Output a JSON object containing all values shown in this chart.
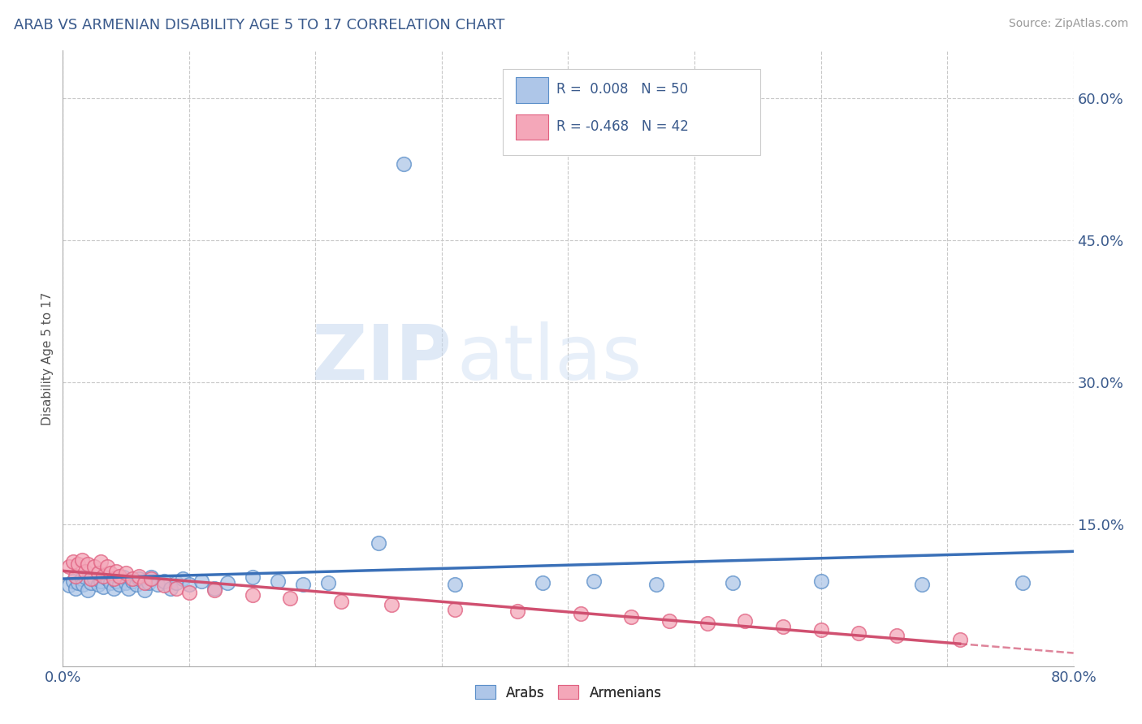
{
  "title": "ARAB VS ARMENIAN DISABILITY AGE 5 TO 17 CORRELATION CHART",
  "source": "Source: ZipAtlas.com",
  "ylabel": "Disability Age 5 to 17",
  "xlim": [
    0.0,
    0.8
  ],
  "ylim": [
    0.0,
    0.65
  ],
  "ytick_labels": [
    "15.0%",
    "30.0%",
    "45.0%",
    "60.0%"
  ],
  "ytick_values": [
    0.15,
    0.3,
    0.45,
    0.6
  ],
  "background_color": "#ffffff",
  "grid_color": "#c8c8c8",
  "title_color": "#3a5a8c",
  "source_color": "#999999",
  "arab_color": "#aec6e8",
  "armenian_color": "#f4a7b9",
  "arab_edge_color": "#5b8fc9",
  "armenian_edge_color": "#e06080",
  "arab_line_color": "#3a70b8",
  "armenian_line_color": "#d05070",
  "arab_R": 0.008,
  "arab_N": 50,
  "armenian_R": -0.468,
  "armenian_N": 42,
  "watermark_zip": "ZIP",
  "watermark_atlas": "atlas",
  "arab_x": [
    0.005,
    0.008,
    0.01,
    0.012,
    0.015,
    0.016,
    0.018,
    0.02,
    0.022,
    0.025,
    0.028,
    0.03,
    0.032,
    0.035,
    0.038,
    0.04,
    0.042,
    0.045,
    0.048,
    0.05,
    0.052,
    0.055,
    0.058,
    0.06,
    0.065,
    0.068,
    0.07,
    0.075,
    0.08,
    0.085,
    0.09,
    0.095,
    0.1,
    0.11,
    0.12,
    0.13,
    0.15,
    0.17,
    0.19,
    0.21,
    0.25,
    0.27,
    0.31,
    0.38,
    0.42,
    0.47,
    0.53,
    0.6,
    0.68,
    0.76
  ],
  "arab_y": [
    0.085,
    0.09,
    0.082,
    0.088,
    0.092,
    0.086,
    0.094,
    0.08,
    0.088,
    0.092,
    0.086,
    0.09,
    0.084,
    0.092,
    0.088,
    0.082,
    0.09,
    0.086,
    0.094,
    0.088,
    0.082,
    0.09,
    0.086,
    0.092,
    0.08,
    0.088,
    0.094,
    0.086,
    0.09,
    0.082,
    0.088,
    0.092,
    0.086,
    0.09,
    0.082,
    0.088,
    0.094,
    0.09,
    0.086,
    0.088,
    0.13,
    0.53,
    0.086,
    0.088,
    0.09,
    0.086,
    0.088,
    0.09,
    0.086,
    0.088
  ],
  "armenian_x": [
    0.005,
    0.008,
    0.01,
    0.012,
    0.015,
    0.018,
    0.02,
    0.022,
    0.025,
    0.028,
    0.03,
    0.032,
    0.035,
    0.038,
    0.04,
    0.042,
    0.045,
    0.05,
    0.055,
    0.06,
    0.065,
    0.07,
    0.08,
    0.09,
    0.1,
    0.12,
    0.15,
    0.18,
    0.22,
    0.26,
    0.31,
    0.36,
    0.41,
    0.45,
    0.48,
    0.51,
    0.54,
    0.57,
    0.6,
    0.63,
    0.66,
    0.71
  ],
  "armenian_y": [
    0.105,
    0.11,
    0.095,
    0.108,
    0.112,
    0.1,
    0.108,
    0.092,
    0.105,
    0.098,
    0.11,
    0.095,
    0.105,
    0.098,
    0.092,
    0.1,
    0.095,
    0.098,
    0.092,
    0.095,
    0.088,
    0.092,
    0.085,
    0.082,
    0.078,
    0.08,
    0.075,
    0.072,
    0.068,
    0.065,
    0.06,
    0.058,
    0.055,
    0.052,
    0.048,
    0.045,
    0.048,
    0.042,
    0.038,
    0.035,
    0.032,
    0.028
  ]
}
